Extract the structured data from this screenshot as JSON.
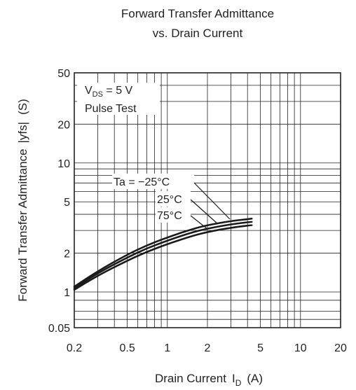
{
  "chart_data": {
    "type": "line",
    "title_lines": [
      "Forward Transfer Admittance",
      "vs. Drain Current"
    ],
    "xlabel_main": "Drain Current",
    "xlabel_symbol": "I",
    "xlabel_sub": "D",
    "xlabel_unit": "(A)",
    "ylabel": "Forward Transfer Admittance",
    "ylabel_symbol": "|yfs|",
    "ylabel_unit": "(S)",
    "x_scale": "log",
    "y_scale": "log",
    "xlim": [
      0.2,
      20
    ],
    "ylim": [
      0.05,
      50
    ],
    "x_ticks": [
      {
        "value": 0.2,
        "label": "0.2"
      },
      {
        "value": 0.5,
        "label": "0.5"
      },
      {
        "value": 1,
        "label": "1"
      },
      {
        "value": 2,
        "label": "2"
      },
      {
        "value": 5,
        "label": "5"
      },
      {
        "value": 10,
        "label": "10"
      },
      {
        "value": 20,
        "label": "20"
      }
    ],
    "y_ticks": [
      {
        "value": 0.05,
        "label": "0.05"
      },
      {
        "value": 1,
        "label": "1"
      },
      {
        "value": 2,
        "label": "2"
      },
      {
        "value": 5,
        "label": "5"
      },
      {
        "value": 10,
        "label": "10"
      },
      {
        "value": 20,
        "label": "20"
      },
      {
        "value": 50,
        "label": "50"
      }
    ],
    "grid": true,
    "conditions": {
      "vds_symbol": "V",
      "vds_sub": "DS",
      "vds_value": " = 5 V",
      "pulse": "Pulse Test"
    },
    "series": [
      {
        "name": "Ta = −25°C",
        "x": [
          0.2,
          0.3,
          0.5,
          0.7,
          1,
          1.5,
          2,
          3,
          4.3
        ],
        "y": [
          1.1,
          1.45,
          1.95,
          2.3,
          2.65,
          3.05,
          3.3,
          3.55,
          3.7
        ]
      },
      {
        "name": "25°C",
        "x": [
          0.2,
          0.3,
          0.5,
          0.7,
          1,
          1.5,
          2,
          3,
          4.3
        ],
        "y": [
          1.07,
          1.4,
          1.85,
          2.18,
          2.5,
          2.88,
          3.1,
          3.35,
          3.5
        ]
      },
      {
        "name": "75°C",
        "x": [
          0.2,
          0.3,
          0.5,
          0.7,
          1,
          1.5,
          2,
          3,
          4.3
        ],
        "y": [
          1.04,
          1.34,
          1.75,
          2.05,
          2.35,
          2.7,
          2.92,
          3.15,
          3.3
        ]
      }
    ],
    "curve_labels": [
      "Ta = −25°C",
      "25°C",
      "75°C"
    ]
  }
}
